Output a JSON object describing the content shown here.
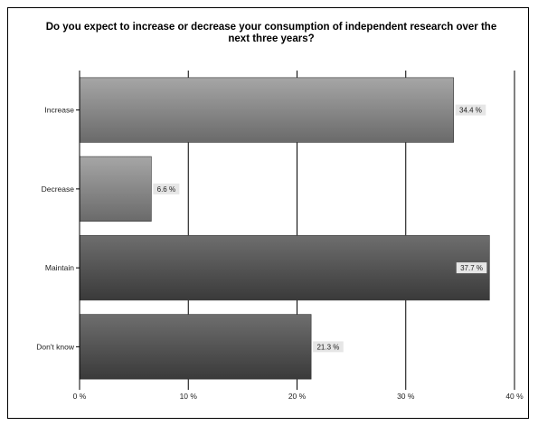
{
  "chart_data": {
    "type": "bar",
    "orientation": "horizontal",
    "title": "Do you expect to increase or decrease your consumption of independent research over the next three years?",
    "categories": [
      "Increase",
      "Decrease",
      "Maintain",
      "Don't know"
    ],
    "values": [
      34.4,
      6.6,
      37.7,
      21.3
    ],
    "data_labels": [
      "34.4 %",
      "6.6 %",
      "37.7 %",
      "21.3 %"
    ],
    "xlim": [
      0,
      40
    ],
    "x_ticks": [
      0,
      10,
      20,
      30,
      40
    ],
    "x_tick_labels": [
      "0 %",
      "10 %",
      "20 %",
      "30 %",
      "40 %"
    ],
    "grid": "vertical",
    "legend": "none",
    "colors": {
      "bar_light_top": "#a6a6a6",
      "bar_light_bottom": "#6a6a6a",
      "bar_dark_top": "#6e6e6e",
      "bar_dark_bottom": "#3a3a3a",
      "grid": "#000000",
      "label_box": "#e6e6e6"
    }
  }
}
